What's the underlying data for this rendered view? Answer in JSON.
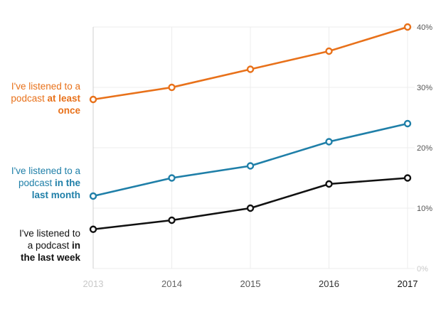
{
  "chart_data": {
    "type": "line",
    "x": [
      2013,
      2014,
      2015,
      2016,
      2017
    ],
    "x_tick_labels": [
      "2013",
      "2014",
      "2015",
      "2016",
      "2017"
    ],
    "y_tick_labels": [
      "0%",
      "10%",
      "20%",
      "30%",
      "40%"
    ],
    "ylim": [
      0,
      40
    ],
    "y_axis_position": "right",
    "grid": true,
    "legend": "direct labels at left of each line",
    "series": [
      {
        "label_plain": "I've listened to a podcast ",
        "label_bold": "at least once",
        "color": "#e8711a",
        "values": [
          28,
          30,
          33,
          36,
          40
        ]
      },
      {
        "label_plain": "I've listened to a podcast ",
        "label_bold": "in the last month",
        "color": "#1f7fa8",
        "values": [
          12,
          15,
          17,
          21,
          24
        ]
      },
      {
        "label_plain": "I've listened to a podcast ",
        "label_bold": "in the last week",
        "color": "#111111",
        "values": [
          6.5,
          8,
          10,
          14,
          15
        ]
      }
    ]
  }
}
